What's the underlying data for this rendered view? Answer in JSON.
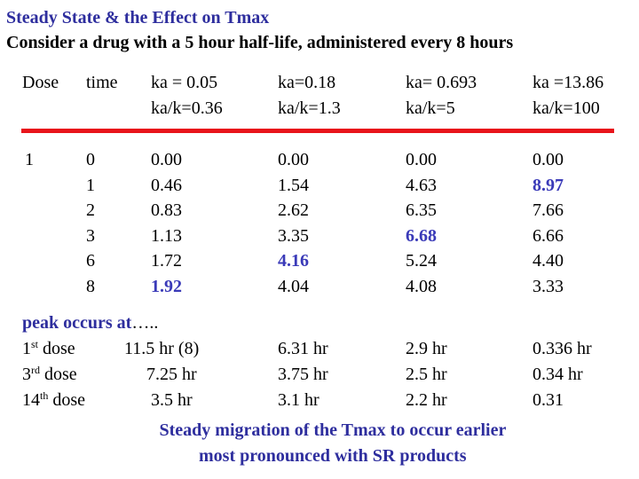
{
  "header": {
    "title": "Steady State & the Effect on Tmax",
    "subtitle": "Consider a drug with a 5 hour half-life, administered every 8 hours"
  },
  "table": {
    "columns": [
      [
        "Dose"
      ],
      [
        "time"
      ],
      [
        "ka = 0.05",
        "ka/k=0.36"
      ],
      [
        "ka=0.18",
        "ka/k=1.3"
      ],
      [
        "ka= 0.693",
        "ka/k=5"
      ],
      [
        "ka =13.86",
        "ka/k=100"
      ]
    ],
    "dose": "1",
    "times": [
      "0",
      "1",
      "2",
      "3",
      "6",
      "8"
    ],
    "values": [
      [
        "0.00",
        "0.46",
        "0.83",
        "1.13",
        "1.72",
        "1.92"
      ],
      [
        "0.00",
        "1.54",
        "2.62",
        "3.35",
        "4.16",
        "4.04"
      ],
      [
        "0.00",
        "4.63",
        "6.35",
        "6.68",
        "5.24",
        "4.08"
      ],
      [
        "0.00",
        "8.97",
        "7.66",
        "6.66",
        "4.40",
        "3.33"
      ]
    ]
  },
  "peak": {
    "heading": "peak occurs at",
    "ellipsis": "…..",
    "rows": [
      {
        "number": "1",
        "suffix": "st",
        "label": "dose",
        "values": [
          "11.5 hr (8)",
          "6.31 hr",
          "2.9 hr",
          "0.336 hr"
        ]
      },
      {
        "number": "3",
        "suffix": "rd",
        "label": "dose",
        "values": [
          "7.25 hr",
          "3.75 hr",
          "2.5 hr",
          "0.34 hr"
        ]
      },
      {
        "number": "14",
        "suffix": "th",
        "label": "dose",
        "values": [
          "3.5 hr",
          "3.1 hr",
          "2.2 hr",
          "0.31"
        ]
      }
    ]
  },
  "footer": {
    "lines": [
      "Steady migration of the Tmax to occur earlier",
      "most pronounced with SR products"
    ]
  }
}
